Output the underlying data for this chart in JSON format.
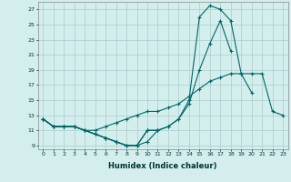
{
  "xlabel": "Humidex (Indice chaleur)",
  "background_color": "#d4eeee",
  "grid_color": "#aacccc",
  "line_color": "#006666",
  "x_values": [
    0,
    1,
    2,
    3,
    4,
    5,
    6,
    7,
    8,
    9,
    10,
    11,
    12,
    13,
    14,
    15,
    16,
    17,
    18,
    19,
    20,
    21,
    22,
    23
  ],
  "line1": [
    12.5,
    11.5,
    11.5,
    11.5,
    11.0,
    10.5,
    10.0,
    9.5,
    9.0,
    9.0,
    9.5,
    11.0,
    null,
    null,
    null,
    null,
    null,
    null,
    null,
    null,
    null,
    null,
    null,
    null
  ],
  "line2": [
    12.5,
    11.5,
    11.5,
    11.5,
    11.0,
    10.5,
    10.0,
    9.5,
    9.0,
    9.0,
    11.0,
    11.0,
    11.5,
    12.5,
    14.5,
    19.0,
    22.5,
    25.5,
    21.5,
    null,
    null,
    null,
    null,
    null
  ],
  "line3": [
    12.5,
    11.5,
    11.5,
    11.5,
    11.0,
    10.5,
    10.0,
    9.5,
    9.0,
    9.0,
    11.0,
    11.0,
    11.5,
    12.5,
    15.0,
    26.0,
    27.5,
    27.0,
    25.5,
    18.5,
    16.0,
    null,
    null,
    null
  ],
  "line4": [
    12.5,
    11.5,
    11.5,
    11.5,
    11.0,
    11.0,
    11.5,
    12.0,
    12.5,
    13.0,
    13.5,
    13.5,
    14.0,
    14.5,
    15.5,
    16.5,
    17.5,
    18.0,
    18.5,
    18.5,
    18.5,
    18.5,
    13.5,
    13.0
  ],
  "ylim": [
    8.5,
    28.0
  ],
  "xlim": [
    -0.5,
    23.5
  ],
  "yticks": [
    9,
    11,
    13,
    15,
    17,
    19,
    21,
    23,
    25,
    27
  ],
  "xticks": [
    0,
    1,
    2,
    3,
    4,
    5,
    6,
    7,
    8,
    9,
    10,
    11,
    12,
    13,
    14,
    15,
    16,
    17,
    18,
    19,
    20,
    21,
    22,
    23
  ]
}
